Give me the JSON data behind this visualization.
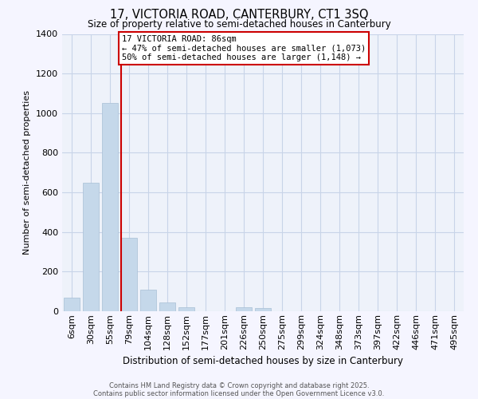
{
  "title_line1": "17, VICTORIA ROAD, CANTERBURY, CT1 3SQ",
  "title_line2": "Size of property relative to semi-detached houses in Canterbury",
  "xlabel": "Distribution of semi-detached houses by size in Canterbury",
  "ylabel": "Number of semi-detached properties",
  "categories": [
    "6sqm",
    "30sqm",
    "55sqm",
    "79sqm",
    "104sqm",
    "128sqm",
    "152sqm",
    "177sqm",
    "201sqm",
    "226sqm",
    "250sqm",
    "275sqm",
    "299sqm",
    "324sqm",
    "348sqm",
    "373sqm",
    "397sqm",
    "422sqm",
    "446sqm",
    "471sqm",
    "495sqm"
  ],
  "values": [
    70,
    650,
    1050,
    370,
    110,
    45,
    20,
    0,
    0,
    20,
    15,
    0,
    0,
    0,
    0,
    0,
    0,
    0,
    0,
    0,
    0
  ],
  "bar_color": "#c5d8ea",
  "bar_edge_color": "#a8bfd5",
  "vline_position": 2.5,
  "annotation_line1": "17 VICTORIA ROAD: 86sqm",
  "annotation_line2": "← 47% of semi-detached houses are smaller (1,073)",
  "annotation_line3": "50% of semi-detached houses are larger (1,148) →",
  "annotation_box_color": "#ffffff",
  "annotation_border_color": "#cc0000",
  "vline_color": "#cc0000",
  "grid_color": "#c8d4e8",
  "background_color": "#eef2fa",
  "fig_background": "#f5f5ff",
  "ylim": [
    0,
    1400
  ],
  "yticks": [
    0,
    200,
    400,
    600,
    800,
    1000,
    1200,
    1400
  ],
  "footer_line1": "Contains HM Land Registry data © Crown copyright and database right 2025.",
  "footer_line2": "Contains public sector information licensed under the Open Government Licence v3.0."
}
